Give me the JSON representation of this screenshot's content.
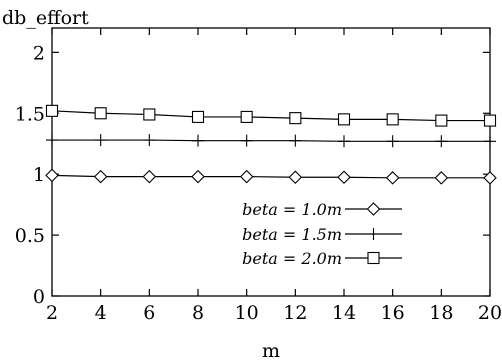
{
  "chart_data": {
    "type": "line",
    "title": "",
    "xlabel": "m",
    "ylabel": "db_effort",
    "xlim": [
      2,
      20
    ],
    "ylim": [
      0,
      2.2
    ],
    "x_ticks": [
      "2",
      "4",
      "6",
      "8",
      "10",
      "12",
      "14",
      "16",
      "18",
      "20"
    ],
    "y_ticks": [
      "0",
      "0.5",
      "1",
      "1.5",
      "2"
    ],
    "x": [
      2,
      4,
      6,
      8,
      10,
      12,
      14,
      16,
      18,
      20
    ],
    "series": [
      {
        "name": "beta = 1.0m",
        "marker": "diamond",
        "values": [
          0.99,
          0.98,
          0.98,
          0.98,
          0.98,
          0.975,
          0.975,
          0.97,
          0.97,
          0.97
        ]
      },
      {
        "name": "beta = 1.5m",
        "marker": "plus",
        "values": [
          1.28,
          1.28,
          1.28,
          1.275,
          1.275,
          1.275,
          1.27,
          1.27,
          1.27,
          1.27
        ]
      },
      {
        "name": "beta = 2.0m",
        "marker": "square",
        "values": [
          1.52,
          1.5,
          1.49,
          1.47,
          1.47,
          1.46,
          1.45,
          1.45,
          1.44,
          1.44
        ]
      }
    ],
    "legend_position": "center-right",
    "grid": false
  }
}
